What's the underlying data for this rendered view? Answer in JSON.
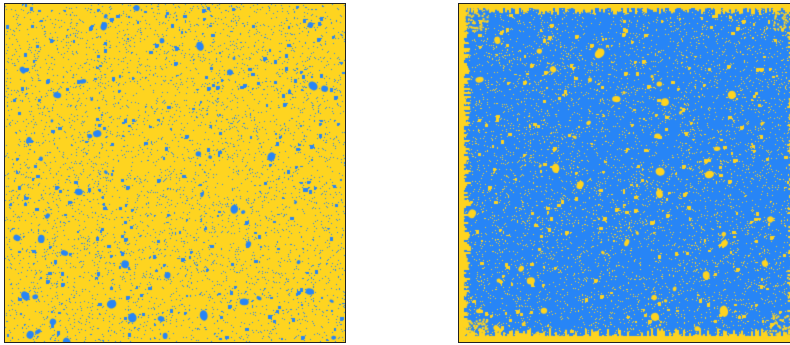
{
  "figure": {
    "colors": {
      "yellow": "#FED420",
      "blue": "#2785F6",
      "border": "#222222",
      "background": "#FFFFFF"
    },
    "panels": [
      {
        "id": "left",
        "dominant_color": "yellow",
        "minority_color": "blue",
        "minority_fraction": 0.07,
        "has_border_rim": false
      },
      {
        "id": "right",
        "dominant_color": "blue",
        "minority_color": "yellow",
        "minority_fraction": 0.09,
        "has_border_rim": true
      }
    ]
  }
}
